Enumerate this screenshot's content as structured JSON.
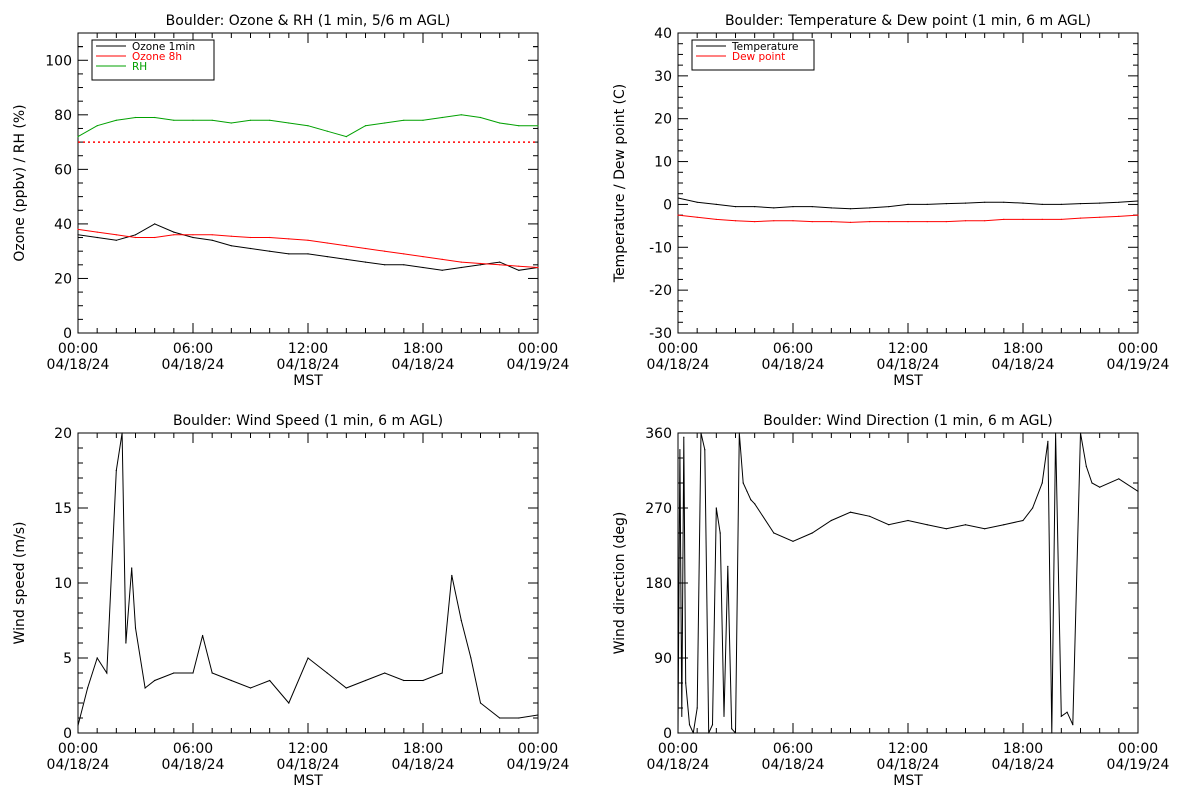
{
  "figure": {
    "x_axis_label": "MST",
    "x_ticks": [
      {
        "time": "00:00",
        "date": "04/18/24"
      },
      {
        "time": "06:00",
        "date": "04/18/24"
      },
      {
        "time": "12:00",
        "date": "04/18/24"
      },
      {
        "time": "18:00",
        "date": "04/18/24"
      },
      {
        "time": "00:00",
        "date": "04/19/24"
      }
    ]
  },
  "chart_data": [
    {
      "type": "line",
      "title": "Boulder: Ozone & RH (1 min, 5/6 m AGL)",
      "xlabel": "MST",
      "ylabel": "Ozone (ppbv) / RH (%)",
      "x_range_hours": [
        0,
        24
      ],
      "ylim": [
        0,
        110
      ],
      "y_ticks": [
        0,
        20,
        40,
        60,
        80,
        100
      ],
      "legend_position": "top-left",
      "grid": false,
      "x": [
        0,
        1,
        2,
        3,
        4,
        5,
        6,
        7,
        8,
        9,
        10,
        11,
        12,
        13,
        14,
        15,
        16,
        17,
        18,
        19,
        20,
        21,
        22,
        23,
        24
      ],
      "series": [
        {
          "name": "Ozone 1min",
          "color": "#000000",
          "values": [
            36,
            35,
            34,
            36,
            40,
            37,
            35,
            34,
            32,
            31,
            30,
            29,
            29,
            28,
            27,
            26,
            25,
            25,
            24,
            23,
            24,
            25,
            26,
            23,
            24
          ]
        },
        {
          "name": "Ozone 8h",
          "color": "#ff0000",
          "values": [
            38,
            37,
            36,
            35,
            35,
            36,
            36,
            36,
            35.5,
            35,
            35,
            34.5,
            34,
            33,
            32,
            31,
            30,
            29,
            28,
            27,
            26,
            25.5,
            25,
            24.5,
            24
          ]
        },
        {
          "name": "RH",
          "color": "#00a000",
          "values": [
            72,
            76,
            78,
            79,
            79,
            78,
            78,
            78,
            77,
            78,
            78,
            77,
            76,
            74,
            72,
            76,
            77,
            78,
            78,
            79,
            80,
            79,
            77,
            76,
            76
          ]
        }
      ],
      "reference_line": {
        "value": 70,
        "color": "#ff0000",
        "style": "dotted"
      }
    },
    {
      "type": "line",
      "title": "Boulder: Temperature & Dew point (1 min, 6 m AGL)",
      "xlabel": "MST",
      "ylabel": "Temperature / Dew point (C)",
      "x_range_hours": [
        0,
        24
      ],
      "ylim": [
        -30,
        40
      ],
      "y_ticks": [
        -30,
        -20,
        -10,
        0,
        10,
        20,
        30,
        40
      ],
      "legend_position": "top-left",
      "grid": false,
      "x": [
        0,
        1,
        2,
        3,
        4,
        5,
        6,
        7,
        8,
        9,
        10,
        11,
        12,
        13,
        14,
        15,
        16,
        17,
        18,
        19,
        20,
        21,
        22,
        23,
        24
      ],
      "series": [
        {
          "name": "Temperature",
          "color": "#000000",
          "values": [
            1.5,
            0.5,
            0,
            -0.5,
            -0.5,
            -0.8,
            -0.5,
            -0.5,
            -0.8,
            -1,
            -0.8,
            -0.5,
            0,
            0,
            0.2,
            0.3,
            0.5,
            0.5,
            0.3,
            0,
            0,
            0.2,
            0.3,
            0.5,
            0.8
          ]
        },
        {
          "name": "Dew point",
          "color": "#ff0000",
          "values": [
            -2.5,
            -3,
            -3.5,
            -3.8,
            -4,
            -3.8,
            -3.8,
            -4,
            -4,
            -4.2,
            -4,
            -4,
            -4,
            -4,
            -4,
            -3.8,
            -3.8,
            -3.5,
            -3.5,
            -3.5,
            -3.5,
            -3.2,
            -3,
            -2.8,
            -2.5
          ]
        }
      ]
    },
    {
      "type": "line",
      "title": "Boulder: Wind Speed (1 min, 6 m AGL)",
      "xlabel": "MST",
      "ylabel": "Wind speed (m/s)",
      "x_range_hours": [
        0,
        24
      ],
      "ylim": [
        0,
        20
      ],
      "y_ticks": [
        0,
        5,
        10,
        15,
        20
      ],
      "grid": false,
      "x": [
        0,
        0.5,
        1,
        1.5,
        2,
        2.3,
        2.5,
        2.8,
        3,
        3.5,
        4,
        5,
        6,
        6.5,
        7,
        8,
        9,
        10,
        11,
        12,
        13,
        14,
        15,
        16,
        17,
        18,
        19,
        19.5,
        20,
        20.5,
        21,
        22,
        23,
        24
      ],
      "series": [
        {
          "name": "",
          "color": "#000000",
          "values": [
            0.5,
            3,
            5,
            4,
            17.5,
            20,
            6,
            11,
            7,
            3,
            3.5,
            4,
            4,
            6.5,
            4,
            3.5,
            3,
            3.5,
            2,
            5,
            4,
            3,
            3.5,
            4,
            3.5,
            3.5,
            4,
            10.5,
            7.5,
            5,
            2,
            1,
            1,
            1.2
          ]
        }
      ]
    },
    {
      "type": "line",
      "title": "Boulder: Wind Direction (1 min, 6 m AGL)",
      "xlabel": "MST",
      "ylabel": "Wind direction (deg)",
      "x_range_hours": [
        0,
        24
      ],
      "ylim": [
        0,
        360
      ],
      "y_ticks": [
        0,
        90,
        180,
        270,
        360
      ],
      "grid": false,
      "x": [
        0,
        0.1,
        0.2,
        0.3,
        0.4,
        0.6,
        0.8,
        1.0,
        1.2,
        1.4,
        1.6,
        1.8,
        2.0,
        2.2,
        2.4,
        2.6,
        2.8,
        3.0,
        3.2,
        3.4,
        3.6,
        3.8,
        4.0,
        5.0,
        6.0,
        7.0,
        8.0,
        9.0,
        10.0,
        11.0,
        12.0,
        13.0,
        14.0,
        15.0,
        16.0,
        17.0,
        18.0,
        18.5,
        19.0,
        19.3,
        19.5,
        19.7,
        20.0,
        20.3,
        20.6,
        21.0,
        21.3,
        21.6,
        22.0,
        23.0,
        24.0
      ],
      "series": [
        {
          "name": "",
          "color": "#000000",
          "values": [
            0,
            340,
            20,
            355,
            60,
            10,
            0,
            30,
            360,
            340,
            0,
            10,
            270,
            240,
            20,
            200,
            5,
            0,
            360,
            300,
            290,
            280,
            275,
            240,
            230,
            240,
            255,
            265,
            260,
            250,
            255,
            250,
            245,
            250,
            245,
            250,
            255,
            270,
            300,
            350,
            0,
            360,
            20,
            25,
            10,
            360,
            320,
            300,
            295,
            305,
            290
          ]
        }
      ]
    }
  ]
}
